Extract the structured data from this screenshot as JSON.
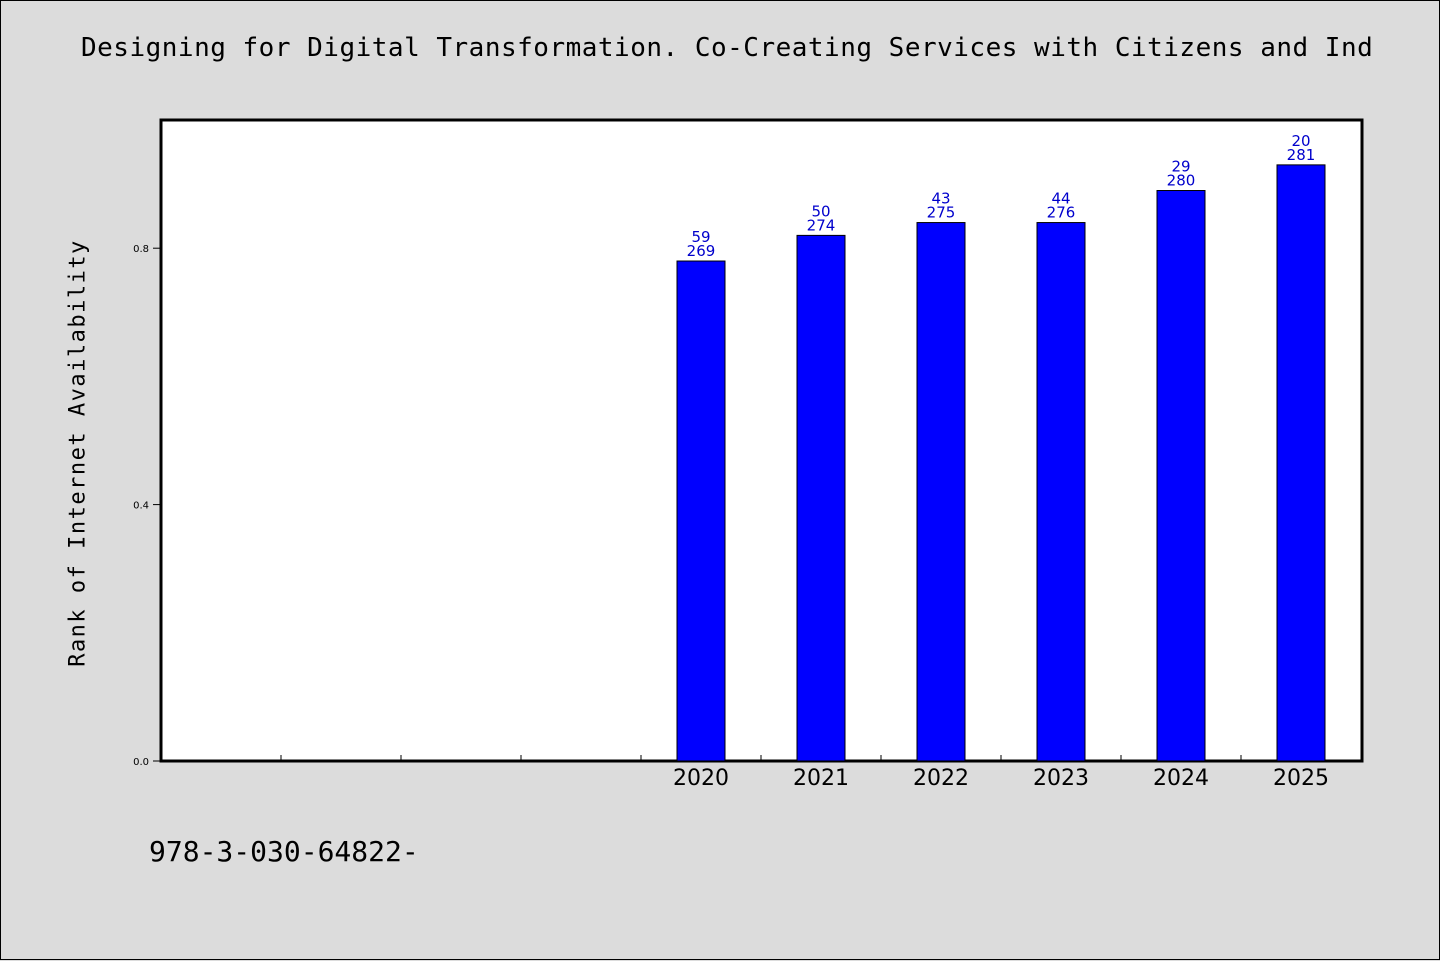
{
  "title": "Designing for Digital Transformation. Co-Creating Services with Citizens and Ind",
  "footer": "978-3-030-64822-",
  "colors": {
    "background": "#dcdcdc",
    "plot_background": "#ffffff",
    "bar": "#0000ff",
    "bar_label": "#0000cc"
  },
  "chart_data": {
    "type": "bar",
    "title": "Designing for Digital Transformation. Co-Creating Services with Citizens and Ind",
    "xlabel": "",
    "ylabel": "Rank of Internet Availability",
    "ylim": [
      0,
      1.0
    ],
    "y_ticks": [
      "0.0",
      "0.4",
      "0.8"
    ],
    "grid": false,
    "legend": "none",
    "slots_before_data": 4,
    "categories": [
      "2020",
      "2021",
      "2022",
      "2023",
      "2024",
      "2025"
    ],
    "values": [
      0.78,
      0.82,
      0.84,
      0.84,
      0.89,
      0.93
    ],
    "label_top": [
      "59",
      "50",
      "43",
      "44",
      "29",
      "20"
    ],
    "label_bottom": [
      "269",
      "274",
      "275",
      "276",
      "280",
      "281"
    ]
  }
}
